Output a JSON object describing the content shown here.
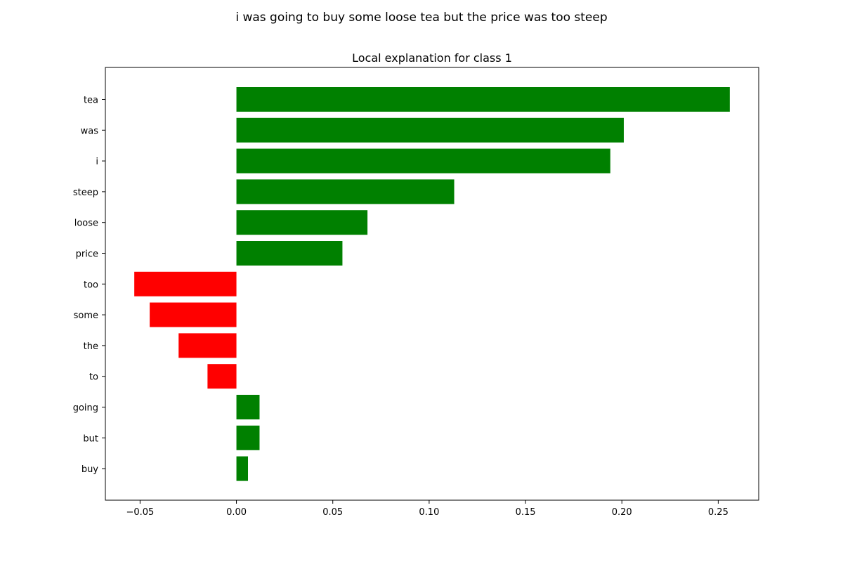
{
  "figure": {
    "suptitle": "i was going to buy some loose tea but the price was too steep"
  },
  "chart_data": {
    "type": "bar",
    "orientation": "horizontal",
    "title": "Local explanation for class 1",
    "xlabel": "",
    "ylabel": "",
    "categories": [
      "tea",
      "was",
      "i",
      "steep",
      "loose",
      "price",
      "too",
      "some",
      "the",
      "to",
      "going",
      "but",
      "buy"
    ],
    "values": [
      0.256,
      0.201,
      0.194,
      0.113,
      0.068,
      0.055,
      -0.053,
      -0.045,
      -0.03,
      -0.015,
      0.012,
      0.012,
      0.006
    ],
    "xlim": [
      -0.068,
      0.271
    ],
    "xticks": [
      -0.05,
      0.0,
      0.05,
      0.1,
      0.15,
      0.2,
      0.25
    ],
    "xtick_labels": [
      "−0.05",
      "0.00",
      "0.05",
      "0.10",
      "0.15",
      "0.20",
      "0.25"
    ],
    "grid": false,
    "colors": {
      "positive": "#008000",
      "negative": "#ff0000"
    }
  }
}
